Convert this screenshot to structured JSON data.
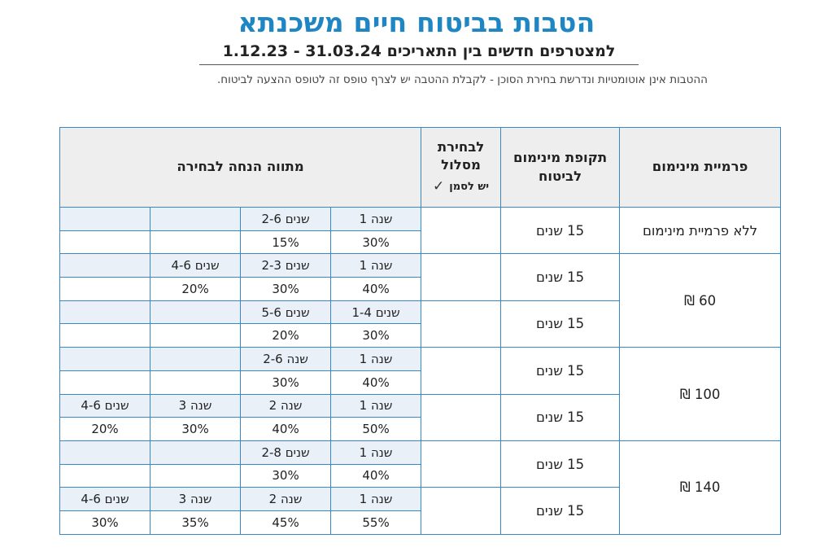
{
  "header": {
    "title": "הטבות בביטוח חיים משכנתא",
    "subtitle": "למצטרפים חדשים בין התאריכים 31.03.24 - 1.12.23",
    "note": "ההטבות אינן אוטומטיות ונדרשת בחירת הסוכן - לקבלת ההטבה יש לצרף טופס זה לטופס ההצעה לביטוח."
  },
  "table": {
    "headers": {
      "premium": "פרמיית מינימום",
      "period": "תקופת מינימום לביטוח",
      "choose": "לבחירת מסלול",
      "choose_mark": "יש לסמן",
      "choose_check": "✓",
      "discount": "מתווה הנחה לבחירה"
    },
    "groups": [
      {
        "premium": "ללא פרמיית מינימום",
        "tracks": [
          {
            "period": "15 שנים",
            "cells": [
              {
                "label": "שנה 1",
                "value": "30%"
              },
              {
                "label": "שנים 2-6",
                "value": "15%"
              },
              {
                "label": "",
                "value": ""
              },
              {
                "label": "",
                "value": ""
              }
            ]
          }
        ]
      },
      {
        "premium": "60 ₪",
        "tracks": [
          {
            "period": "15 שנים",
            "cells": [
              {
                "label": "שנה 1",
                "value": "40%"
              },
              {
                "label": "שנים 2-3",
                "value": "30%"
              },
              {
                "label": "שנים 4-6",
                "value": "20%"
              },
              {
                "label": "",
                "value": ""
              }
            ]
          },
          {
            "period": "15 שנים",
            "cells": [
              {
                "label": "שנים 1-4",
                "value": "30%"
              },
              {
                "label": "שנים 5-6",
                "value": "20%"
              },
              {
                "label": "",
                "value": ""
              },
              {
                "label": "",
                "value": ""
              }
            ]
          }
        ]
      },
      {
        "premium": "100 ₪",
        "tracks": [
          {
            "period": "15 שנים",
            "cells": [
              {
                "label": "שנה 1",
                "value": "40%"
              },
              {
                "label": "שנה 2-6",
                "value": "30%"
              },
              {
                "label": "",
                "value": ""
              },
              {
                "label": "",
                "value": ""
              }
            ]
          },
          {
            "period": "15 שנים",
            "cells": [
              {
                "label": "שנה 1",
                "value": "50%"
              },
              {
                "label": "שנה 2",
                "value": "40%"
              },
              {
                "label": "שנה 3",
                "value": "30%"
              },
              {
                "label": "שנים 4-6",
                "value": "20%"
              }
            ]
          }
        ]
      },
      {
        "premium": "140 ₪",
        "tracks": [
          {
            "period": "15 שנים",
            "cells": [
              {
                "label": "שנה 1",
                "value": "40%"
              },
              {
                "label": "שנים 2-8",
                "value": "30%"
              },
              {
                "label": "",
                "value": ""
              },
              {
                "label": "",
                "value": ""
              }
            ]
          },
          {
            "period": "15 שנים",
            "cells": [
              {
                "label": "שנה 1",
                "value": "55%"
              },
              {
                "label": "שנה 2",
                "value": "45%"
              },
              {
                "label": "שנה 3",
                "value": "35%"
              },
              {
                "label": "שנים 4-6",
                "value": "30%"
              }
            ]
          }
        ]
      }
    ]
  }
}
